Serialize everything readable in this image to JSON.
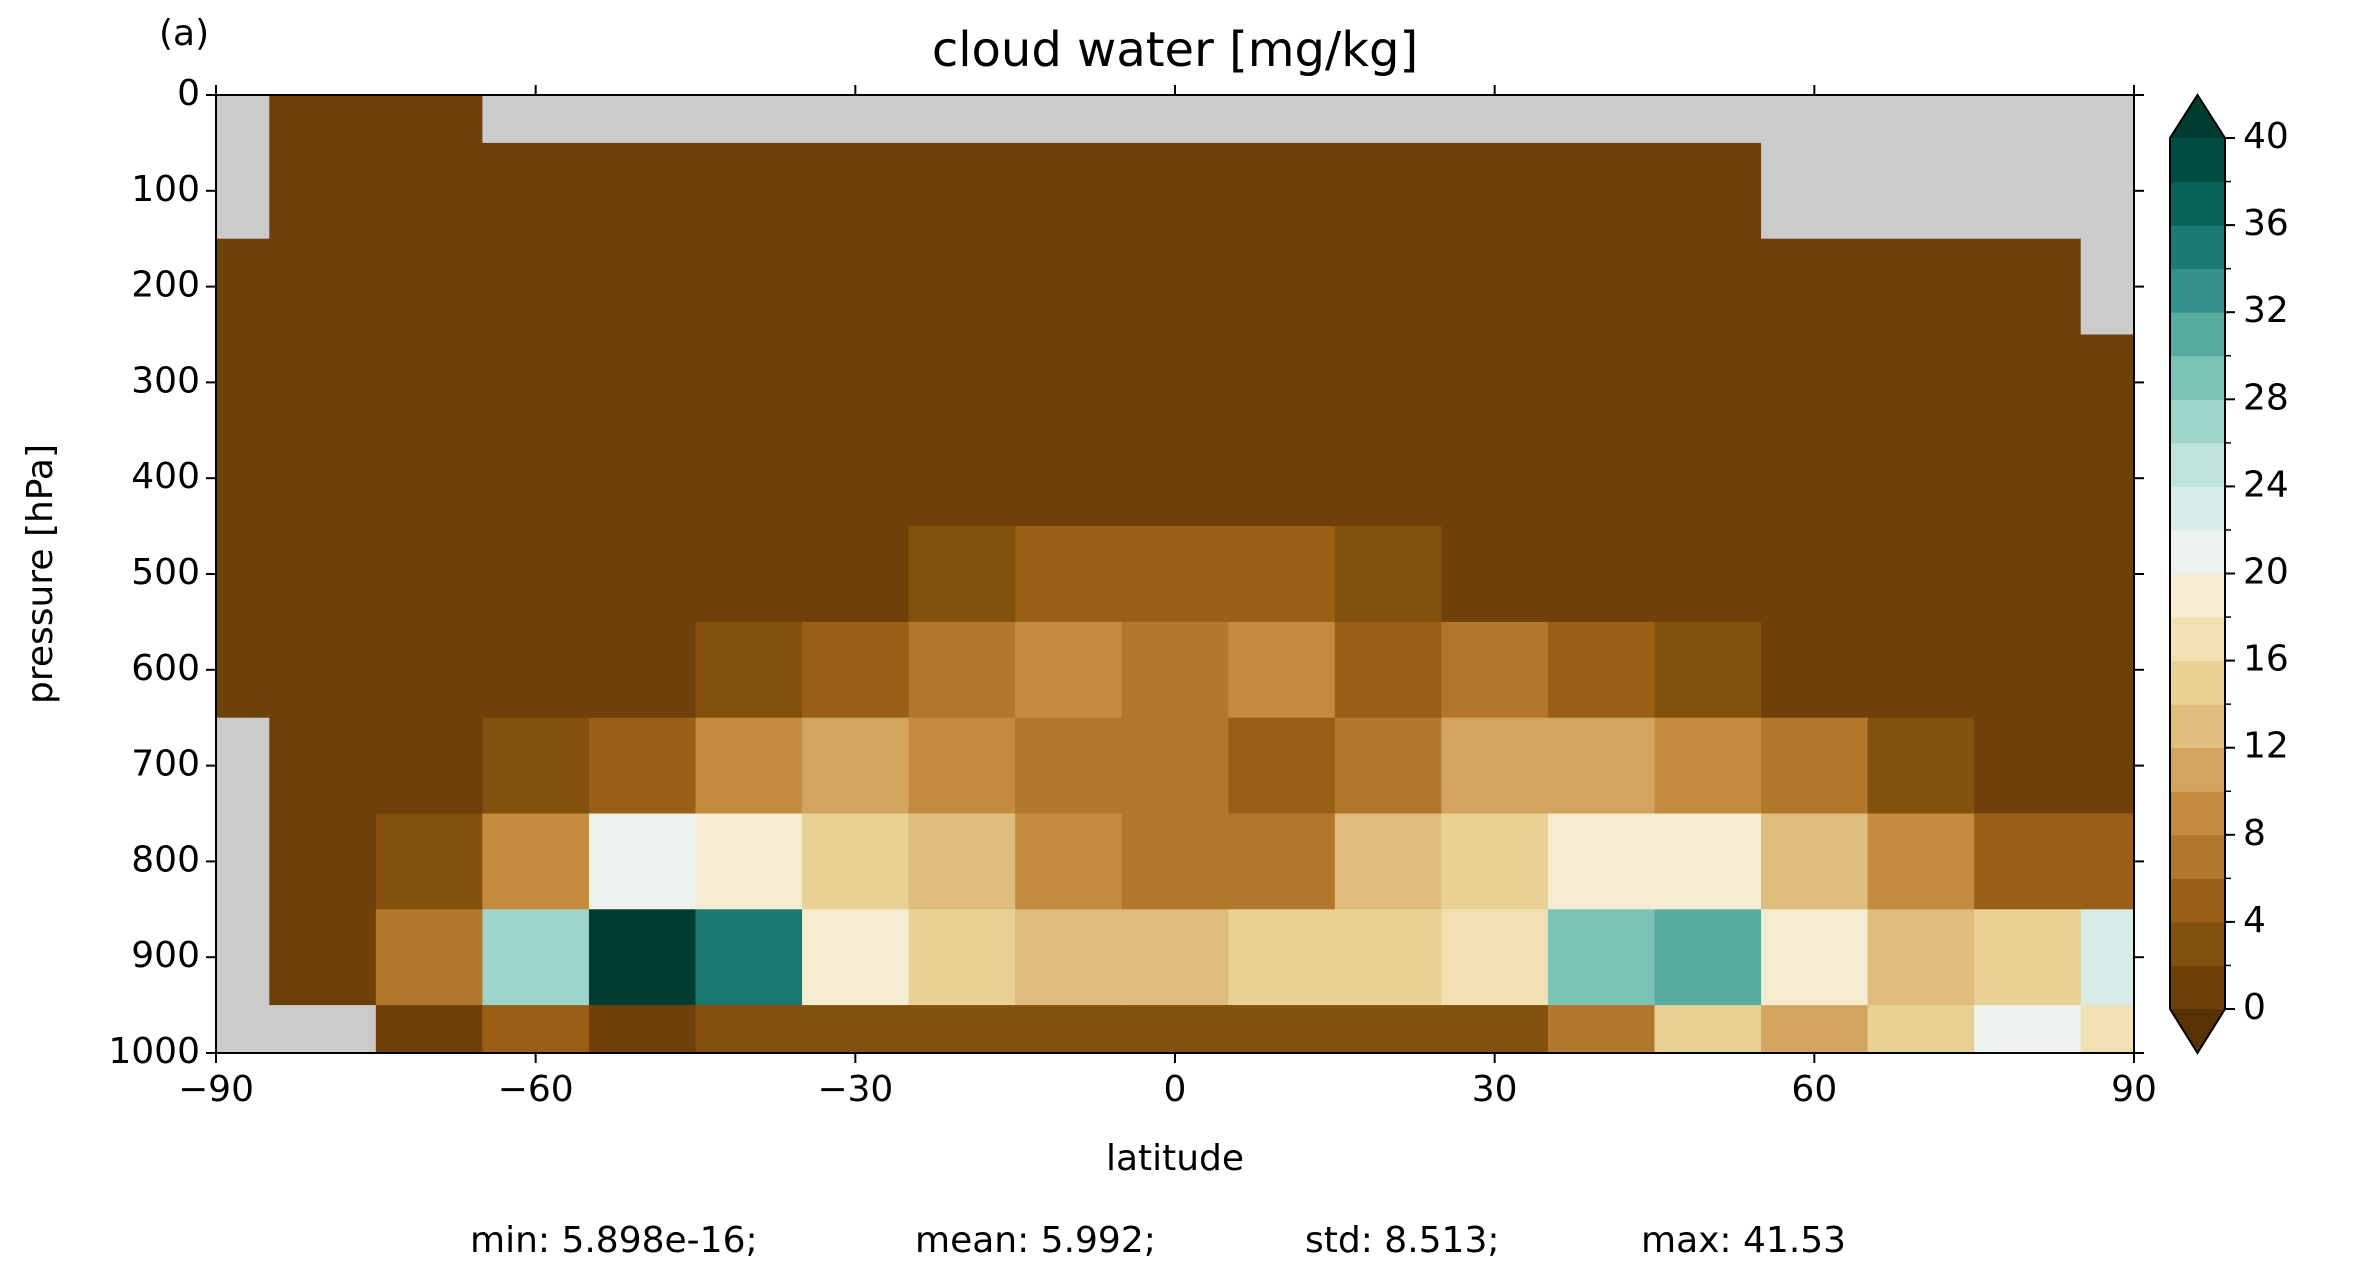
{
  "chart_data": {
    "type": "contourf",
    "panel_label": "(a)",
    "title": "cloud water [mg/kg]",
    "xlabel": "latitude",
    "ylabel": "pressure [hPa]",
    "x": [
      -90,
      -80,
      -70,
      -60,
      -50,
      -40,
      -30,
      -20,
      -10,
      0,
      10,
      20,
      30,
      40,
      50,
      60,
      70,
      80,
      90
    ],
    "y": [
      0,
      100,
      200,
      300,
      400,
      500,
      600,
      700,
      800,
      900,
      1000
    ],
    "z": [
      [
        null,
        0,
        0,
        null,
        null,
        null,
        null,
        null,
        null,
        null,
        null,
        null,
        null,
        null,
        null,
        null,
        null,
        null,
        null
      ],
      [
        null,
        0,
        0,
        0,
        0,
        0,
        0,
        0,
        0,
        0,
        0,
        0,
        0,
        0,
        0,
        null,
        null,
        null,
        null
      ],
      [
        0,
        0,
        0,
        0,
        0,
        0,
        0,
        0,
        0,
        0,
        0,
        0,
        0,
        0,
        0,
        0,
        0,
        0,
        null
      ],
      [
        0,
        0,
        0,
        0,
        0,
        0,
        0,
        0,
        0,
        0,
        0,
        0,
        0,
        0,
        0,
        0,
        0,
        0,
        0
      ],
      [
        0,
        0,
        0,
        0,
        0,
        0,
        0,
        0,
        1,
        1,
        1,
        0,
        0,
        0,
        0,
        0,
        0,
        0,
        0
      ],
      [
        0,
        0,
        0,
        0,
        0,
        0,
        1,
        2,
        4,
        4,
        4,
        2,
        1,
        0,
        0,
        0,
        0,
        0,
        0
      ],
      [
        0,
        0,
        0,
        0,
        0,
        2,
        4,
        6,
        8,
        6,
        8,
        4,
        6,
        4,
        2,
        1,
        0,
        0,
        0
      ],
      [
        null,
        0,
        0,
        2,
        4,
        8,
        10,
        8,
        6,
        6,
        4,
        6,
        10,
        10,
        8,
        6,
        2,
        1,
        0
      ],
      [
        null,
        0,
        2,
        8,
        20,
        18,
        14,
        12,
        8,
        6,
        6,
        12,
        14,
        18,
        18,
        12,
        8,
        4,
        4
      ],
      [
        null,
        1,
        6,
        26,
        40,
        34,
        18,
        14,
        12,
        12,
        14,
        14,
        16,
        28,
        30,
        18,
        12,
        14,
        22
      ],
      [
        null,
        null,
        0,
        4,
        0,
        2,
        2,
        2,
        2,
        2,
        2,
        2,
        2,
        6,
        14,
        10,
        14,
        20,
        16
      ]
    ],
    "xlim": [
      -90,
      90
    ],
    "ylim": [
      1000,
      0
    ],
    "xticks": [
      {
        "value": -90,
        "label": "−90"
      },
      {
        "value": -60,
        "label": "−60"
      },
      {
        "value": -30,
        "label": "−30"
      },
      0,
      30,
      60,
      90
    ],
    "yticks": [
      0,
      100,
      200,
      300,
      400,
      500,
      600,
      700,
      800,
      900,
      1000
    ],
    "levels": [
      0,
      2,
      4,
      6,
      8,
      10,
      12,
      14,
      16,
      18,
      20,
      22,
      24,
      26,
      28,
      30,
      32,
      34,
      36,
      38,
      40
    ],
    "colors": [
      "#70400a",
      "#84500e",
      "#9a5f17",
      "#b2772a",
      "#c48b3f",
      "#d3a45e",
      "#dfbd7d",
      "#e9d196",
      "#f1e0b2",
      "#f5ecd1",
      "#eef2ef",
      "#d7ece8",
      "#bde3dc",
      "#9ed5cb",
      "#7cc3b6",
      "#57aca0",
      "#35928a",
      "#1b7a72",
      "#066259",
      "#004c42"
    ],
    "under_color": "#583205",
    "over_color": "#003c30",
    "missing_color": "#cbcbcb",
    "cbar_ticks": [
      0,
      4,
      8,
      12,
      16,
      20,
      24,
      28,
      32,
      36,
      40
    ],
    "stats": [
      "min: 5.898e-16;",
      "mean: 5.992;",
      "std: 8.513;",
      "max: 41.53"
    ]
  }
}
